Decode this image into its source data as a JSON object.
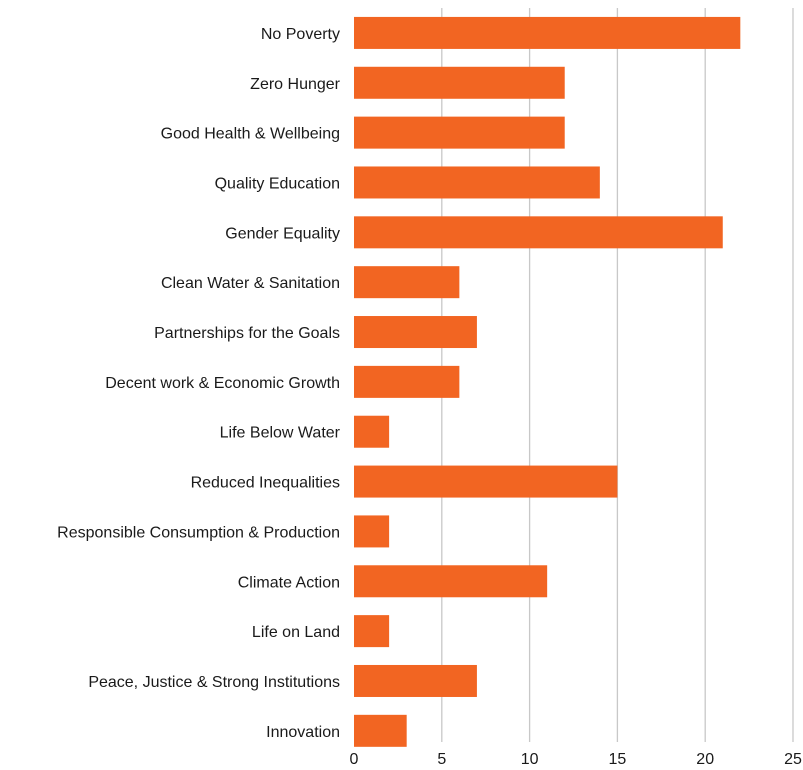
{
  "chart_data": {
    "type": "bar",
    "orientation": "horizontal",
    "title": "",
    "xlabel": "",
    "ylabel": "",
    "categories": [
      "No Poverty",
      "Zero Hunger",
      "Good Health & Wellbeing",
      "Quality Education",
      "Gender Equality",
      "Clean Water & Sanitation",
      "Partnerships for the Goals",
      "Decent work & Economic Growth",
      "Life Below Water",
      "Reduced Inequalities",
      "Responsible Consumption & Production",
      "Climate Action",
      "Life on Land",
      "Peace, Justice & Strong Institutions",
      "Innovation"
    ],
    "values": [
      22,
      12,
      12,
      14,
      21,
      6,
      7,
      6,
      2,
      15,
      2,
      11,
      2,
      7,
      3
    ],
    "xlim": [
      0,
      25
    ],
    "xticks": [
      0,
      5,
      10,
      15,
      20,
      25
    ],
    "grid": true,
    "legend": "none",
    "colors": {
      "bar": "#F26522",
      "grid": "#c8c8c8",
      "text": "#1a1a1a"
    }
  }
}
